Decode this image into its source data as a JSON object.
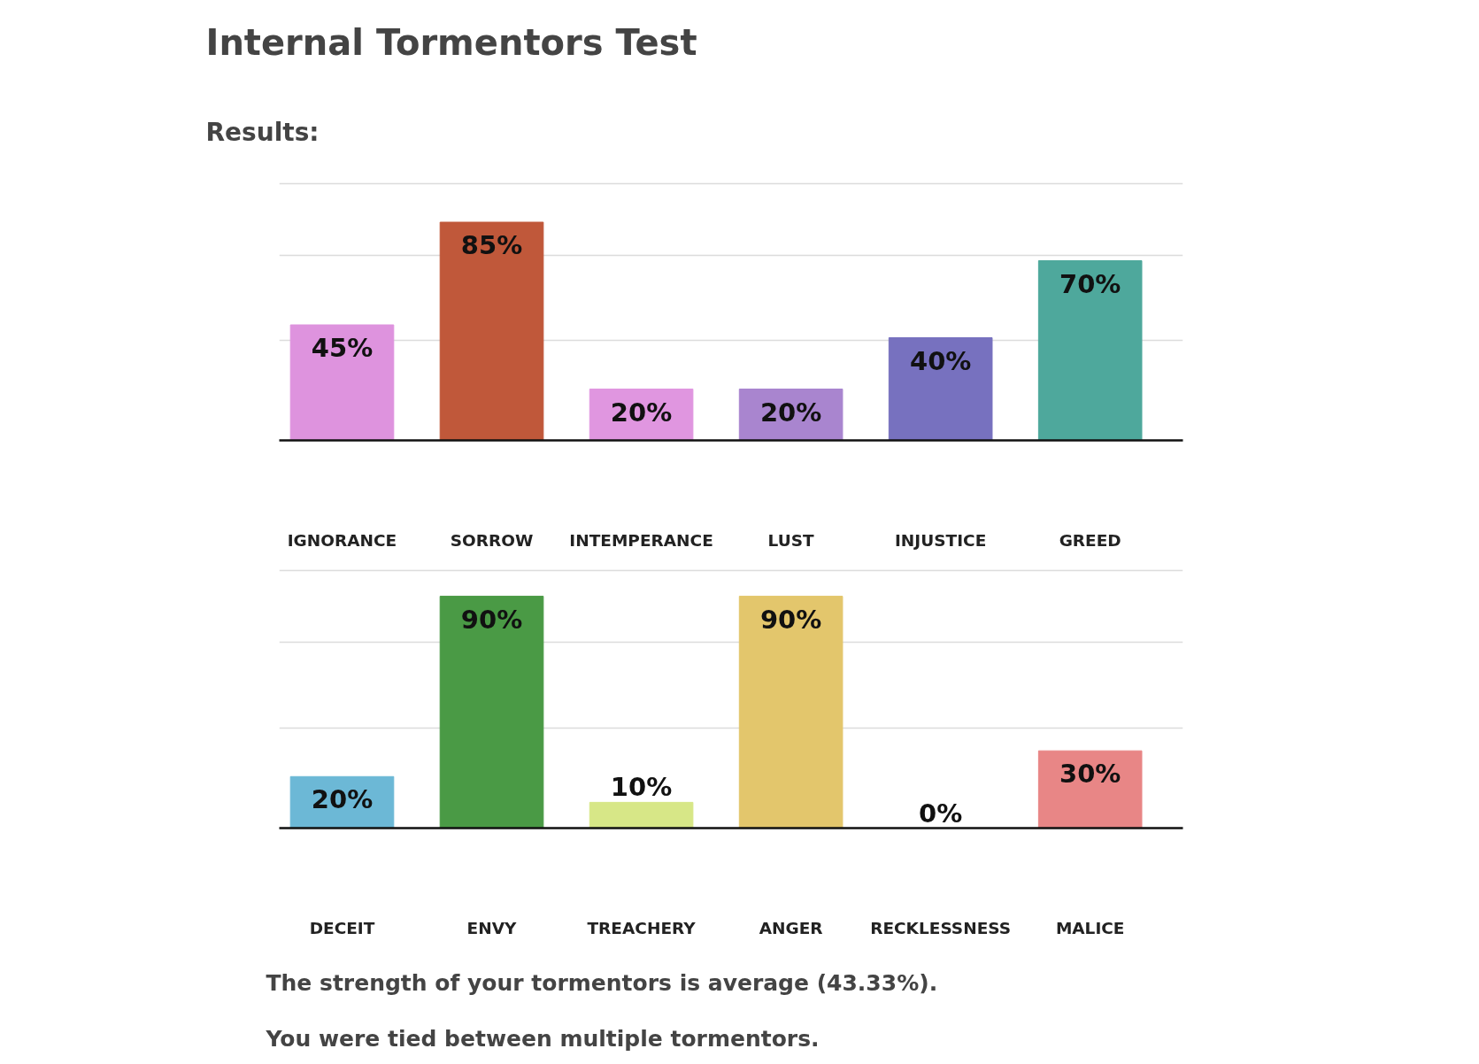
{
  "chart_data": [
    {
      "type": "bar",
      "title": "Internal Tormentors Test",
      "subtitle": "Results:",
      "categories": [
        "IGNORANCE",
        "SORROW",
        "INTEMPERANCE",
        "LUST",
        "INJUSTICE",
        "GREED"
      ],
      "values": [
        45,
        85,
        20,
        20,
        40,
        70
      ],
      "colors": [
        "#de93de",
        "#c0583a",
        "#e096e0",
        "#a985cf",
        "#7771bf",
        "#4ea89c"
      ],
      "value_labels": [
        "45%",
        "85%",
        "20%",
        "20%",
        "40%",
        "70%"
      ],
      "ylim": [
        0,
        100
      ],
      "yticks": [
        {
          "value": 39,
          "label": null
        },
        {
          "value": 72,
          "label": null
        },
        {
          "value": 100,
          "label": null
        }
      ],
      "grid": "y",
      "tick_labels": "x"
    },
    {
      "type": "bar",
      "categories": [
        "DECEIT",
        "ENVY",
        "TREACHERY",
        "ANGER",
        "RECKLESSNESS",
        "MALICE"
      ],
      "values": [
        20,
        90,
        10,
        90,
        0,
        30
      ],
      "colors": [
        "#6cb8d6",
        "#4a9a45",
        "#d7e787",
        "#e3c66c",
        "#e8884f",
        "#e88686"
      ],
      "value_labels": [
        "20%",
        "90%",
        "10%",
        "90%",
        "0%",
        "30%"
      ],
      "ylim": [
        0,
        100
      ],
      "yticks": [
        {
          "value": 39,
          "label": null
        },
        {
          "value": 72,
          "label": null
        },
        {
          "value": 100,
          "label": null
        }
      ],
      "grid": "y",
      "tick_labels": "x",
      "annotations": [
        "The strength of your tormentors is average (43.33%).",
        "You were tied between multiple tormentors."
      ]
    }
  ]
}
